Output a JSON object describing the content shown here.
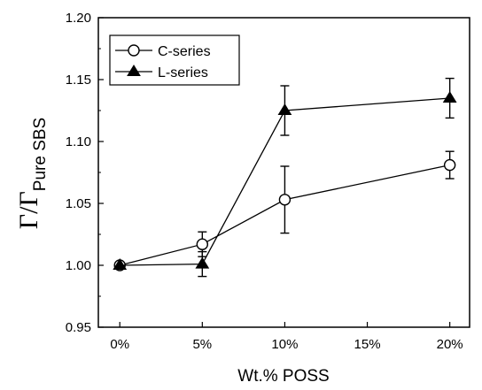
{
  "chart_data": {
    "type": "line",
    "title": "",
    "xlabel": "Wt.% POSS",
    "ylabel": {
      "main": "Γ/Γ",
      "subscript": "Pure SBS"
    },
    "x_ticks": [
      {
        "value": 0,
        "label": "0%"
      },
      {
        "value": 5,
        "label": "5%"
      },
      {
        "value": 10,
        "label": "10%"
      },
      {
        "value": 15,
        "label": "15%"
      },
      {
        "value": 20,
        "label": "20%"
      }
    ],
    "y_ticks": [
      {
        "value": 0.95,
        "label": "0.95"
      },
      {
        "value": 1.0,
        "label": "1.00"
      },
      {
        "value": 1.05,
        "label": "1.05"
      },
      {
        "value": 1.1,
        "label": "1.10"
      },
      {
        "value": 1.15,
        "label": "1.15"
      },
      {
        "value": 1.2,
        "label": "1.20"
      }
    ],
    "xlim": [
      -1.3,
      21.2
    ],
    "ylim": [
      0.95,
      1.2
    ],
    "grid": false,
    "legend_position": "top-left",
    "series": [
      {
        "name": "C-series",
        "marker": "open-circle",
        "color": "#000000",
        "points": [
          {
            "x": 0,
            "y": 1.0,
            "err": 0
          },
          {
            "x": 5,
            "y": 1.017,
            "err": 0.01
          },
          {
            "x": 10,
            "y": 1.053,
            "err": 0.027
          },
          {
            "x": 20,
            "y": 1.081,
            "err": 0.011
          }
        ]
      },
      {
        "name": "L-series",
        "marker": "filled-triangle",
        "color": "#000000",
        "points": [
          {
            "x": 0,
            "y": 1.0,
            "err": 0
          },
          {
            "x": 5,
            "y": 1.001,
            "err": 0.01
          },
          {
            "x": 10,
            "y": 1.125,
            "err": 0.02
          },
          {
            "x": 20,
            "y": 1.135,
            "err": 0.016
          }
        ]
      }
    ]
  }
}
